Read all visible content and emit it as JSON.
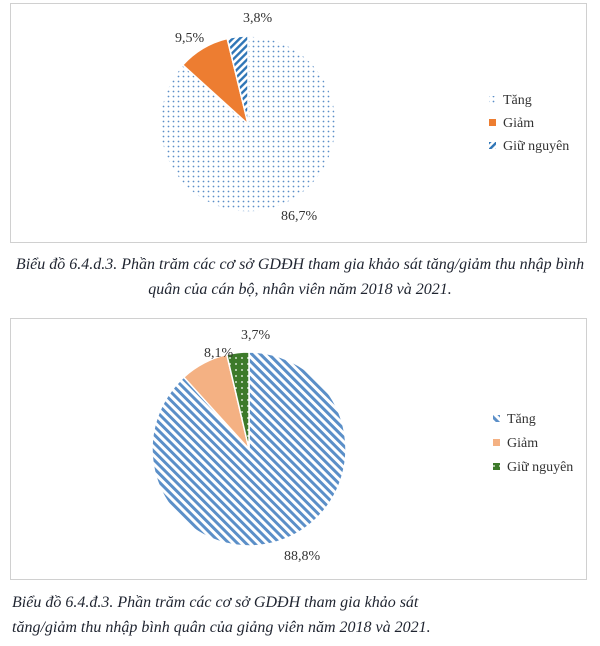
{
  "chart_data": [
    {
      "type": "pie",
      "title": "",
      "categories": [
        "Tăng",
        "Giảm",
        "Giữ nguyên"
      ],
      "values": [
        86.7,
        9.5,
        3.8
      ],
      "data_labels": [
        "86,7%",
        "9,5%",
        "3,8%"
      ],
      "legend_position": "right",
      "colors": [
        "#5b8fc8",
        "#ed7d31",
        "#2e75b6"
      ],
      "patterns": [
        "dots",
        "solid",
        "diagonal-stripes"
      ]
    },
    {
      "type": "pie",
      "title": "",
      "categories": [
        "Tăng",
        "Giảm",
        "Giữ nguyên"
      ],
      "values": [
        88.8,
        8.1,
        3.7
      ],
      "data_labels": [
        "88,8%",
        "8,1%",
        "3,7%"
      ],
      "legend_position": "right",
      "colors": [
        "#5b8fc8",
        "#f4b183",
        "#3d7a2a"
      ],
      "patterns": [
        "diagonal-hatch",
        "solid",
        "dots"
      ]
    }
  ],
  "captions": {
    "chart1": "Biểu đồ 6.4.d.3. Phần trăm các cơ sở GDĐH tham gia khảo sát tăng/giảm thu nhập bình quân của cán bộ, nhân viên năm 2018 và 2021.",
    "chart2_line1": "Biểu đồ 6.4.đ.3. Phần trăm các cơ sở GDĐH tham gia khảo sát",
    "chart2_line2": "tăng/giảm thu nhập bình quân của giảng viên năm 2018 và 2021."
  }
}
